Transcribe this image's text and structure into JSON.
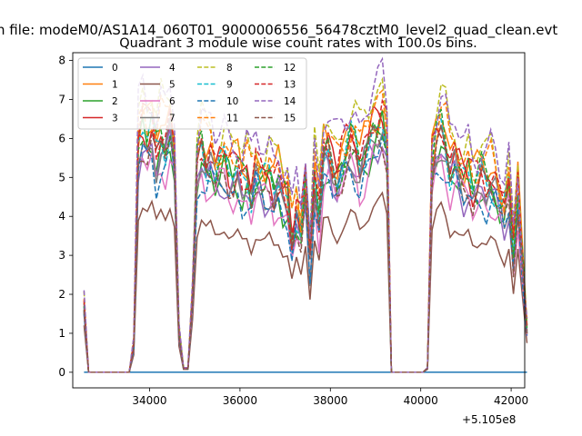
{
  "chart_data": {
    "type": "line",
    "suptitle": "n file: modeM0/AS1A14_060T01_9000006556_56478cztM0_level2_quad_clean.evt",
    "title": "Quadrant 3 module wise count rates with 100.0s bins.",
    "xlabel": "",
    "ylabel": "",
    "x_offset_label": "+5.105e8",
    "xlim": [
      32300,
      42300
    ],
    "ylim": [
      -0.4,
      8.2
    ],
    "xticks": [
      34000,
      36000,
      38000,
      40000,
      42000
    ],
    "xtick_labels": [
      "34000",
      "36000",
      "38000",
      "40000",
      "42000"
    ],
    "yticks": [
      0,
      1,
      2,
      3,
      4,
      5,
      6,
      7,
      8
    ],
    "ytick_labels": [
      "0",
      "1",
      "2",
      "3",
      "4",
      "5",
      "6",
      "7",
      "8"
    ],
    "x_start": 32550,
    "x_step": 100,
    "segments": [
      {
        "start": 0,
        "end": 1
      },
      {
        "start": 11,
        "end": 19
      },
      {
        "start": 20,
        "end": 65
      },
      {
        "start": 75,
        "end": 91
      }
    ],
    "series": [
      {
        "name": "0",
        "color": "#1f77b4",
        "dash": "solid",
        "scale": 0,
        "offset": 0
      },
      {
        "name": "1",
        "color": "#ff7f0e",
        "dash": "solid",
        "scale": 1.1,
        "offset": 0.1
      },
      {
        "name": "2",
        "color": "#2ca02c",
        "dash": "solid",
        "scale": 1.0,
        "offset": 0
      },
      {
        "name": "3",
        "color": "#d62728",
        "dash": "solid",
        "scale": 1.06,
        "offset": 0
      },
      {
        "name": "4",
        "color": "#9467bd",
        "dash": "solid",
        "scale": 0.97,
        "offset": 0
      },
      {
        "name": "5",
        "color": "#8c564b",
        "dash": "solid",
        "scale": 0.75,
        "offset": 0
      },
      {
        "name": "6",
        "color": "#e377c2",
        "dash": "solid",
        "scale": 0.93,
        "offset": 0
      },
      {
        "name": "7",
        "color": "#7f7f7f",
        "dash": "solid",
        "scale": 0.99,
        "offset": 0
      },
      {
        "name": "8",
        "color": "#bcbd22",
        "dash": "dashed",
        "scale": 1.17,
        "offset": 0.2
      },
      {
        "name": "9",
        "color": "#17becf",
        "dash": "dashed",
        "scale": 1.05,
        "offset": 0
      },
      {
        "name": "10",
        "color": "#1f77b4",
        "dash": "dashed",
        "scale": 0.94,
        "offset": 0
      },
      {
        "name": "11",
        "color": "#ff7f0e",
        "dash": "dashed",
        "scale": 1.12,
        "offset": 0.1
      },
      {
        "name": "12",
        "color": "#2ca02c",
        "dash": "dashed",
        "scale": 1.04,
        "offset": 0.1
      },
      {
        "name": "13",
        "color": "#d62728",
        "dash": "dashed",
        "scale": 1.08,
        "offset": 0.1
      },
      {
        "name": "14",
        "color": "#9467bd",
        "dash": "dashed",
        "scale": 1.19,
        "offset": 0.2
      },
      {
        "name": "15",
        "color": "#8c564b",
        "dash": "dashed",
        "scale": 1.0,
        "offset": 0
      }
    ],
    "base_profile": [
      1.6,
      0.0,
      0.0,
      0.0,
      0.0,
      0.0,
      0.0,
      0.0,
      0.0,
      0.0,
      0.0,
      0.6,
      5.6,
      6.0,
      5.7,
      5.9,
      5.3,
      5.8,
      5.6,
      6.0,
      5.2,
      0.9,
      0.1,
      0.1,
      1.8,
      5.0,
      5.5,
      5.1,
      5.2,
      4.8,
      5.0,
      5.2,
      4.9,
      4.8,
      4.9,
      4.6,
      4.8,
      4.4,
      4.9,
      4.7,
      4.6,
      4.8,
      4.5,
      4.7,
      4.3,
      4.2,
      3.2,
      3.9,
      3.4,
      4.6,
      2.8,
      4.8,
      3.9,
      5.3,
      5.4,
      5.0,
      4.8,
      5.1,
      5.3,
      5.6,
      5.5,
      5.1,
      5.4,
      5.6,
      5.9,
      6.0,
      6.2,
      5.6,
      0.0,
      0.0,
      0.0,
      0.0,
      0.0,
      0.0,
      0.0,
      0.0,
      0.1,
      5.0,
      5.6,
      5.9,
      5.6,
      5.0,
      5.2,
      4.9,
      4.7,
      4.9,
      4.5,
      4.6,
      4.8,
      4.6,
      4.7,
      4.5,
      4.1,
      3.9,
      4.6,
      2.9,
      4.3,
      2.5,
      1.0
    ],
    "legend": {
      "location": "upper-left",
      "columns": 4
    }
  }
}
